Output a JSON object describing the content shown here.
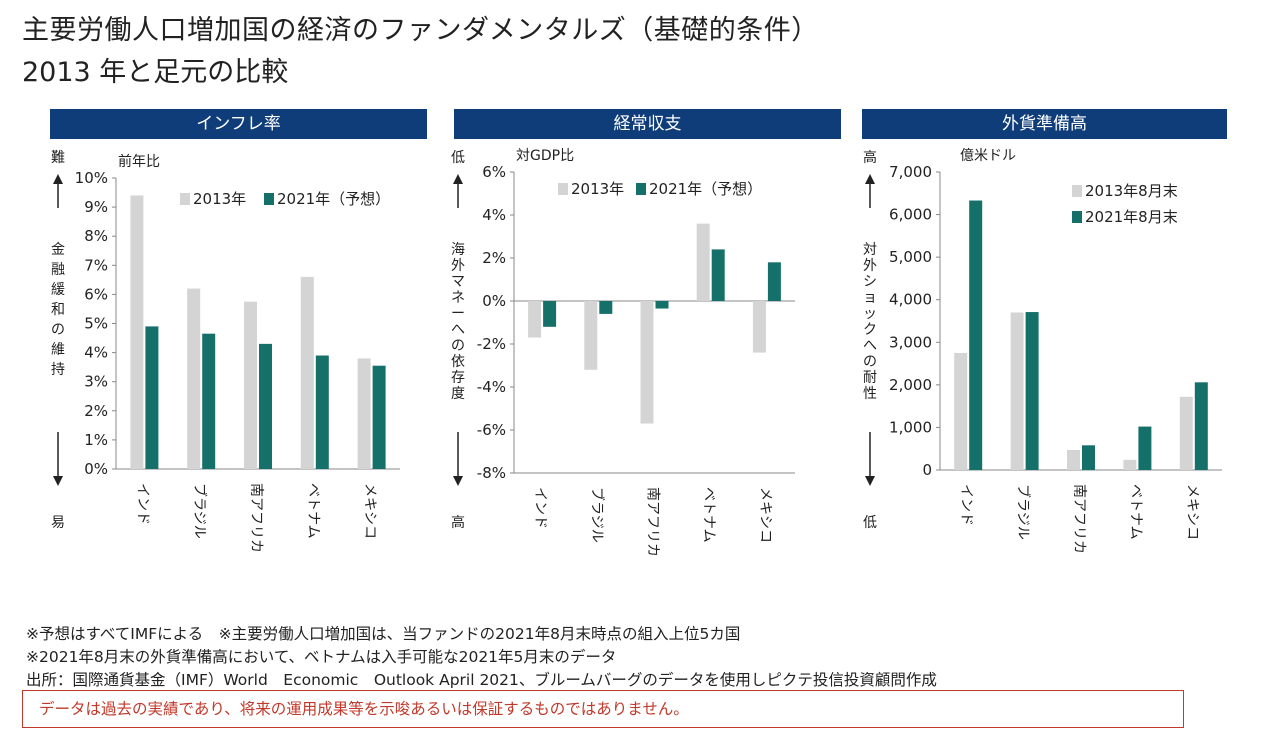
{
  "title_line1": "主要労働人口増加国の経済のファンダメンタルズ（基礎的条件）",
  "title_line2": "2013 年と足元の比較",
  "colors": {
    "series_2013": "#d4d4d4",
    "series_2021": "#16706a",
    "header_bg": "#0f3d7a",
    "disclaimer": "#c0392b"
  },
  "notes": [
    "※予想はすべてIMFによる　※主要労働人口増加国は、当ファンドの2021年8月末時点の組入上位5カ国",
    "※2021年8月末の外貨準備高において、ベトナムは入手可能な2021年5月末のデータ",
    "出所：国際通貨基金（IMF）World　Economic　Outlook April 2021、ブルームバーグのデータを使用しピクテ投信投資顧問作成"
  ],
  "disclaimer": "データは過去の実績であり、将来の運用成果等を示唆あるいは保証するものではありません。",
  "chart_data": [
    {
      "type": "bar",
      "title": "インフレ率",
      "unit_label": "前年比",
      "side_top": "難",
      "side_bottom": "易",
      "side_label": "金融緩和の維持",
      "categories": [
        "インド",
        "ブラジル",
        "南アフリカ",
        "ベトナム",
        "メキシコ"
      ],
      "series": [
        {
          "name": "2013年",
          "values": [
            9.4,
            6.2,
            5.75,
            6.6,
            3.8
          ]
        },
        {
          "name": "2021年（予想）",
          "values": [
            4.9,
            4.65,
            4.3,
            3.9,
            3.55
          ]
        }
      ],
      "yticks": [
        "0%",
        "1%",
        "2%",
        "3%",
        "4%",
        "5%",
        "6%",
        "7%",
        "8%",
        "9%",
        "10%"
      ],
      "ylim": [
        0,
        10
      ]
    },
    {
      "type": "bar",
      "title": "経常収支",
      "unit_label": "対GDP比",
      "side_top": "低",
      "side_bottom": "高",
      "side_label": "海外マネーへの依存度",
      "categories": [
        "インド",
        "ブラジル",
        "南アフリカ",
        "ベトナム",
        "メキシコ"
      ],
      "series": [
        {
          "name": "2013年",
          "values": [
            -1.7,
            -3.2,
            -5.7,
            3.6,
            -2.4
          ]
        },
        {
          "name": "2021年（予想）",
          "values": [
            -1.2,
            -0.6,
            -0.35,
            2.4,
            1.8
          ]
        }
      ],
      "yticks": [
        "-8%",
        "-6%",
        "-4%",
        "-2%",
        "0%",
        "2%",
        "4%",
        "6%"
      ],
      "ylim": [
        -8,
        6
      ]
    },
    {
      "type": "bar",
      "title": "外貨準備高",
      "unit_label": "億米ドル",
      "side_top": "高",
      "side_bottom": "低",
      "side_label": "対外ショックへの耐性",
      "categories": [
        "インド",
        "ブラジル",
        "南アフリカ",
        "ベトナム",
        "メキシコ"
      ],
      "series": [
        {
          "name": "2013年8月末",
          "values": [
            2750,
            3700,
            470,
            240,
            1720
          ]
        },
        {
          "name": "2021年8月末",
          "values": [
            6330,
            3710,
            580,
            1020,
            2060
          ]
        }
      ],
      "yticks": [
        "0",
        "1,000",
        "2,000",
        "3,000",
        "4,000",
        "5,000",
        "6,000",
        "7,000"
      ],
      "ylim": [
        0,
        7000
      ]
    }
  ]
}
